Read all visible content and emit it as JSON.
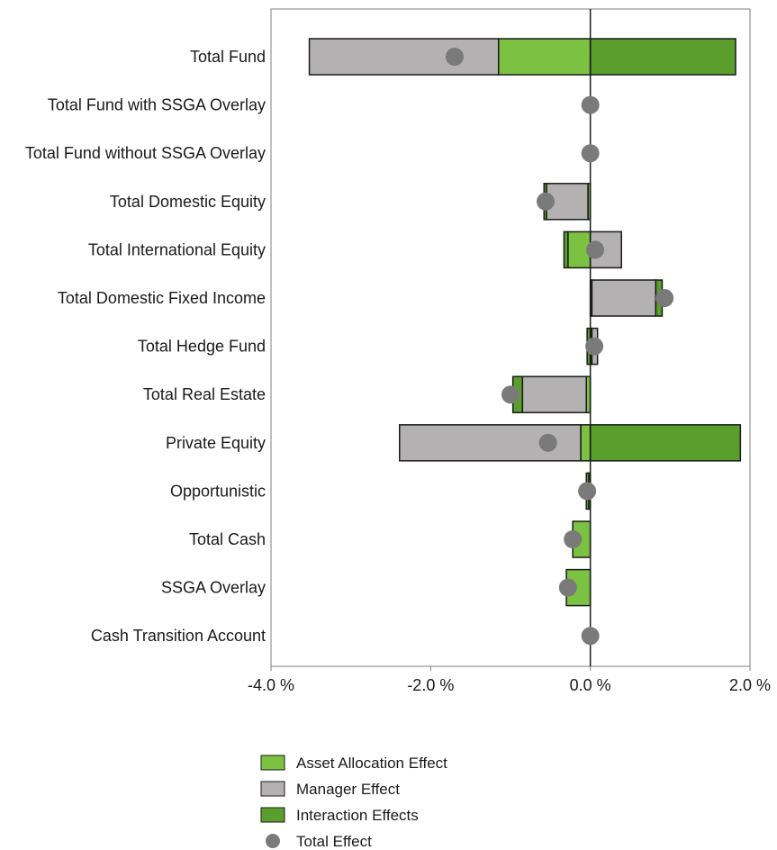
{
  "chart_data": {
    "type": "bar",
    "orientation": "horizontal",
    "stacked": "diverging",
    "categories": [
      "Total Fund",
      "Total Fund with SSGA Overlay",
      "Total Fund without SSGA Overlay",
      "Total Domestic Equity",
      "Total International Equity",
      "Total Domestic Fixed Income",
      "Total Hedge Fund",
      "Total Real Estate",
      "Private Equity",
      "Opportunistic",
      "Total Cash",
      "SSGA Overlay",
      "Cash Transition Account"
    ],
    "series": [
      {
        "name": "Asset Allocation Effect",
        "color": "#7cc242",
        "values": [
          -1.15,
          0,
          0,
          -0.03,
          -0.28,
          0.02,
          0.02,
          -0.05,
          -0.12,
          -0.02,
          -0.22,
          -0.3,
          0
        ]
      },
      {
        "name": "Manager Effect",
        "color": "#b3b1b2",
        "values": [
          -2.37,
          0,
          0,
          -0.52,
          0.39,
          0.8,
          0.07,
          -0.8,
          -2.27,
          0,
          0,
          0,
          0
        ]
      },
      {
        "name": "Interaction Effects",
        "color": "#5a9e2c",
        "values": [
          1.82,
          0,
          0,
          -0.03,
          -0.05,
          0.08,
          -0.04,
          -0.12,
          1.88,
          -0.03,
          0,
          0,
          0
        ]
      }
    ],
    "total_effect": {
      "name": "Total Effect",
      "color": "#7a7a7a",
      "values": [
        -1.7,
        0,
        0,
        -0.56,
        0.06,
        0.93,
        0.05,
        -1.0,
        -0.53,
        -0.04,
        -0.22,
        -0.28,
        0
      ]
    },
    "x_ticks": [
      "-4.0 %",
      "-2.0 %",
      "0.0 %",
      "2.0 %"
    ],
    "x_tick_values": [
      -4,
      -2,
      0,
      2
    ],
    "xlim": [
      -4,
      2
    ],
    "grid": false,
    "legend_position": "bottom"
  }
}
